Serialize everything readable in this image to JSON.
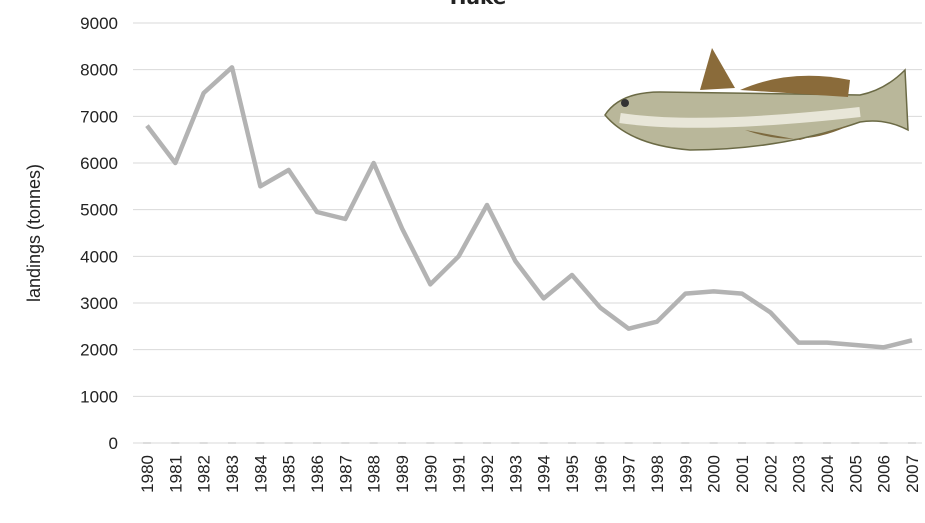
{
  "chart_data": {
    "type": "line",
    "title": "Hake",
    "y_label": "landings (tonnes)",
    "categories": [
      "1980",
      "1981",
      "1982",
      "1983",
      "1984",
      "1985",
      "1986",
      "1987",
      "1988",
      "1989",
      "1990",
      "1991",
      "1992",
      "1993",
      "1994",
      "1995",
      "1996",
      "1997",
      "1998",
      "1999",
      "2000",
      "2001",
      "2002",
      "2003",
      "2004",
      "2005",
      "2006",
      "2007"
    ],
    "series": [
      {
        "name": "Hake",
        "color": "#b3b3b3",
        "values": [
          6800,
          6000,
          7500,
          8050,
          5500,
          5850,
          4950,
          4800,
          6000,
          4600,
          3400,
          4000,
          5100,
          3900,
          3100,
          3600,
          2900,
          2450,
          2600,
          3200,
          3250,
          3200,
          2800,
          2150,
          2150,
          2100,
          2050,
          2200
        ]
      }
    ],
    "ylim": [
      0,
      9000
    ],
    "yticks": [
      0,
      1000,
      2000,
      3000,
      4000,
      5000,
      6000,
      7000,
      8000,
      9000
    ],
    "grid": true
  }
}
